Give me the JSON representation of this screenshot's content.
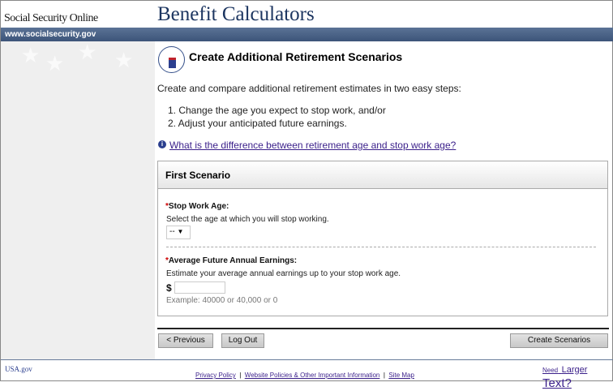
{
  "header": {
    "brand": "Social Security Online",
    "title": "Benefit Calculators",
    "url": "www.socialsecurity.gov"
  },
  "page": {
    "title": "Create Additional Retirement Scenarios",
    "intro": "Create and compare additional retirement estimates in two easy steps:",
    "steps": [
      "1.  Change the age you expect to stop work, and/or",
      "2.  Adjust your anticipated future earnings."
    ],
    "help_link": "What is the difference between retirement age and stop work age?"
  },
  "panel": {
    "title": "First Scenario",
    "required_mark": "*",
    "stop_age": {
      "label": "Stop Work Age:",
      "help": "Select the age at which you will stop working.",
      "value": "--"
    },
    "earnings": {
      "label": "Average Future Annual Earnings:",
      "help": "Estimate your average annual earnings up to your stop work age.",
      "currency": "$",
      "value": "",
      "example": "Example: 40000 or 40,000 or 0"
    }
  },
  "buttons": {
    "previous": "< Previous",
    "logout": "Log Out",
    "create": "Create Scenarios"
  },
  "footer": {
    "usa": "USA.gov",
    "privacy": "Privacy Policy",
    "sep": "|",
    "policies": "Website Policies & Other Important Information",
    "sitemap": "Site Map",
    "need": "Need",
    "larger": "Larger",
    "text": "Text?"
  }
}
